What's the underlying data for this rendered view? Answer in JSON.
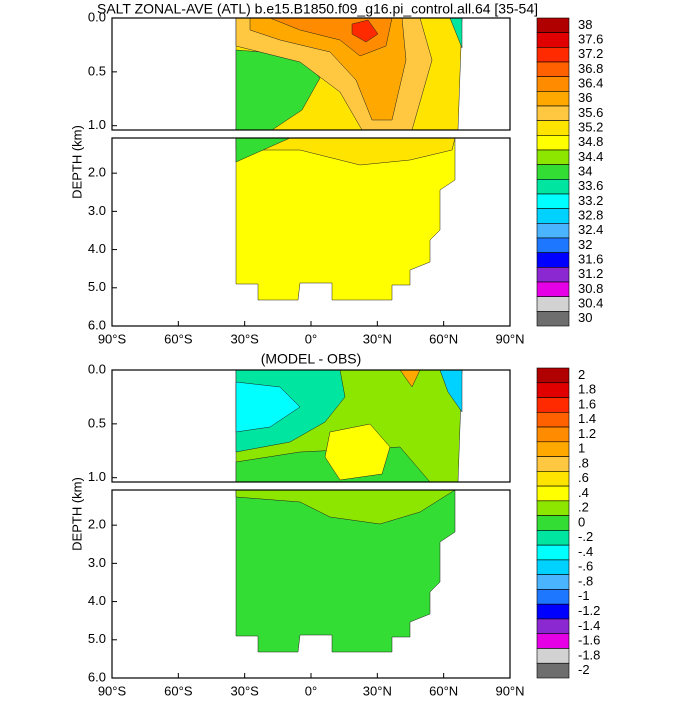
{
  "chart_data": [
    {
      "type": "contour",
      "title": "SALT ZONAL-AVE (ATL) b.e15.B1850.f09_g16.pi_control.all.64 [35-54]",
      "y_label": "DEPTH (km)",
      "xlim": [
        -90,
        90
      ],
      "xticks": [
        {
          "value": -90,
          "label": "90°S"
        },
        {
          "value": -60,
          "label": "60°S"
        },
        {
          "value": -30,
          "label": "30°S"
        },
        {
          "value": 0,
          "label": "0°"
        },
        {
          "value": 30,
          "label": "30°N"
        },
        {
          "value": 60,
          "label": "60°N"
        },
        {
          "value": 90,
          "label": "90°N"
        }
      ],
      "ylim_upper": [
        0,
        1.04
      ],
      "yticks_upper": [
        {
          "value": 0,
          "label": "0.0"
        },
        {
          "value": 0.5,
          "label": "0.5"
        },
        {
          "value": 1,
          "label": "1.0"
        }
      ],
      "ylim_lower": [
        1.08,
        6
      ],
      "yticks_lower": [
        {
          "value": 2,
          "label": "2.0"
        },
        {
          "value": 3,
          "label": "3.0"
        },
        {
          "value": 4,
          "label": "4.0"
        },
        {
          "value": 5,
          "label": "5.0"
        },
        {
          "value": 6,
          "label": "6.0"
        }
      ],
      "colorbar_labels": [
        38,
        37.6,
        37.2,
        36.8,
        36.4,
        36,
        35.6,
        35.2,
        34.8,
        34.4,
        34,
        33.6,
        33.2,
        32.8,
        32.4,
        32,
        31.6,
        31.2,
        30.8,
        30.4,
        30
      ],
      "colorbar_colors": [
        "#b00000",
        "#e00000",
        "#ff2a00",
        "#ff6000",
        "#ff8c00",
        "#ffa800",
        "#ffc840",
        "#ffe400",
        "#ffff00",
        "#8ce600",
        "#33dd33",
        "#00e6a0",
        "#00ffff",
        "#00d2ff",
        "#4ab4ff",
        "#1e78ff",
        "#0000ff",
        "#8c28d2",
        "#e600e6",
        "#d2d2d2",
        "#6e6e6e"
      ]
    },
    {
      "type": "contour",
      "title": "(MODEL - OBS)",
      "y_label": "DEPTH (km)",
      "xlim": [
        -90,
        90
      ],
      "xticks": [
        {
          "value": -90,
          "label": "90°S"
        },
        {
          "value": -60,
          "label": "60°S"
        },
        {
          "value": -30,
          "label": "30°S"
        },
        {
          "value": 0,
          "label": "0°"
        },
        {
          "value": 30,
          "label": "30°N"
        },
        {
          "value": 60,
          "label": "60°N"
        },
        {
          "value": 90,
          "label": "90°N"
        }
      ],
      "ylim_upper": [
        0,
        1.04
      ],
      "yticks_upper": [
        {
          "value": 0,
          "label": "0.0"
        },
        {
          "value": 0.5,
          "label": "0.5"
        },
        {
          "value": 1,
          "label": "1.0"
        }
      ],
      "ylim_lower": [
        1.08,
        6
      ],
      "yticks_lower": [
        {
          "value": 2,
          "label": "2.0"
        },
        {
          "value": 3,
          "label": "3.0"
        },
        {
          "value": 4,
          "label": "4.0"
        },
        {
          "value": 5,
          "label": "5.0"
        },
        {
          "value": 6,
          "label": "6.0"
        }
      ],
      "colorbar_labels": [
        2,
        1.8,
        1.6,
        1.4,
        1.2,
        1,
        {
          "value": 0.8,
          "label": ".8"
        },
        {
          "value": 0.6,
          "label": ".6"
        },
        {
          "value": 0.4,
          "label": ".4"
        },
        {
          "value": 0.2,
          "label": ".2"
        },
        0,
        {
          "value": -0.2,
          "label": "-.2"
        },
        {
          "value": -0.4,
          "label": "-.4"
        },
        {
          "value": -0.6,
          "label": "-.6"
        },
        {
          "value": -0.8,
          "label": "-.8"
        },
        -1,
        -1.2,
        -1.4,
        -1.6,
        -1.8,
        -2
      ],
      "colorbar_colors": [
        "#b00000",
        "#e00000",
        "#ff2a00",
        "#ff6000",
        "#ff8c00",
        "#ffa800",
        "#ffc840",
        "#ffe400",
        "#ffff00",
        "#8ce600",
        "#33dd33",
        "#00e6a0",
        "#00ffff",
        "#00d2ff",
        "#4ab4ff",
        "#1e78ff",
        "#0000ff",
        "#8c28d2",
        "#e600e6",
        "#d2d2d2",
        "#6e6e6e"
      ]
    }
  ]
}
